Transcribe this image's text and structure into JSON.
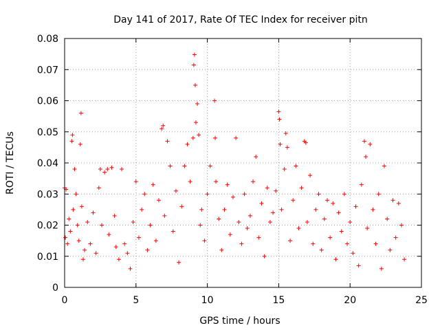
{
  "chart_data": {
    "type": "scatter",
    "title": "Day 141 of 2017, Rate Of TEC Index for receiver pitn",
    "xlabel": "GPS time / hours",
    "ylabel": "ROTI / TECUs",
    "xlim": [
      0,
      25
    ],
    "ylim": [
      0,
      0.08
    ],
    "xticks": [
      0,
      5,
      10,
      15,
      20,
      25
    ],
    "xtick_labels": [
      "0",
      "5",
      "10",
      "15",
      "20",
      "25"
    ],
    "yticks": [
      0,
      0.01,
      0.02,
      0.03,
      0.04,
      0.05,
      0.06,
      0.07,
      0.08
    ],
    "ytick_labels": [
      "0",
      "0.01",
      "0.02",
      "0.03",
      "0.04",
      "0.05",
      "0.06",
      "0.07",
      "0.08"
    ],
    "grid": true,
    "marker": "plus",
    "color": "#ff0000",
    "series": [
      {
        "name": "ROTI",
        "points": [
          [
            0.0,
            0.032
          ],
          [
            0.05,
            0.016
          ],
          [
            0.1,
            0.0315
          ],
          [
            0.2,
            0.014
          ],
          [
            0.3,
            0.022
          ],
          [
            0.4,
            0.018
          ],
          [
            0.5,
            0.047
          ],
          [
            0.55,
            0.049
          ],
          [
            0.6,
            0.025
          ],
          [
            0.7,
            0.038
          ],
          [
            0.8,
            0.03
          ],
          [
            0.9,
            0.02
          ],
          [
            1.0,
            0.015
          ],
          [
            1.1,
            0.046
          ],
          [
            1.15,
            0.056
          ],
          [
            1.2,
            0.026
          ],
          [
            1.3,
            0.009
          ],
          [
            1.4,
            0.012
          ],
          [
            1.6,
            0.021
          ],
          [
            1.8,
            0.014
          ],
          [
            2.0,
            0.024
          ],
          [
            2.2,
            0.011
          ],
          [
            2.4,
            0.032
          ],
          [
            2.5,
            0.038
          ],
          [
            2.6,
            0.02
          ],
          [
            2.8,
            0.037
          ],
          [
            3.0,
            0.038
          ],
          [
            3.1,
            0.017
          ],
          [
            3.3,
            0.0385
          ],
          [
            3.5,
            0.023
          ],
          [
            3.6,
            0.013
          ],
          [
            3.8,
            0.009
          ],
          [
            4.0,
            0.038
          ],
          [
            4.2,
            0.014
          ],
          [
            4.4,
            0.011
          ],
          [
            4.6,
            0.006
          ],
          [
            4.8,
            0.021
          ],
          [
            5.0,
            0.034
          ],
          [
            5.2,
            0.016
          ],
          [
            5.4,
            0.025
          ],
          [
            5.6,
            0.03
          ],
          [
            5.8,
            0.012
          ],
          [
            6.0,
            0.02
          ],
          [
            6.2,
            0.033
          ],
          [
            6.4,
            0.015
          ],
          [
            6.6,
            0.028
          ],
          [
            6.8,
            0.051
          ],
          [
            6.9,
            0.052
          ],
          [
            7.0,
            0.023
          ],
          [
            7.2,
            0.047
          ],
          [
            7.4,
            0.039
          ],
          [
            7.6,
            0.018
          ],
          [
            7.8,
            0.031
          ],
          [
            8.0,
            0.008
          ],
          [
            8.2,
            0.026
          ],
          [
            8.4,
            0.039
          ],
          [
            8.6,
            0.046
          ],
          [
            8.8,
            0.034
          ],
          [
            9.0,
            0.048
          ],
          [
            9.05,
            0.0715
          ],
          [
            9.1,
            0.0748
          ],
          [
            9.15,
            0.065
          ],
          [
            9.2,
            0.053
          ],
          [
            9.3,
            0.059
          ],
          [
            9.4,
            0.049
          ],
          [
            9.5,
            0.02
          ],
          [
            9.6,
            0.025
          ],
          [
            9.8,
            0.015
          ],
          [
            10.0,
            0.03
          ],
          [
            10.2,
            0.039
          ],
          [
            10.5,
            0.06
          ],
          [
            10.55,
            0.048
          ],
          [
            10.6,
            0.034
          ],
          [
            10.8,
            0.022
          ],
          [
            11.0,
            0.012
          ],
          [
            11.2,
            0.025
          ],
          [
            11.4,
            0.033
          ],
          [
            11.6,
            0.017
          ],
          [
            11.8,
            0.029
          ],
          [
            12.0,
            0.048
          ],
          [
            12.2,
            0.021
          ],
          [
            12.4,
            0.014
          ],
          [
            12.6,
            0.03
          ],
          [
            12.8,
            0.019
          ],
          [
            13.0,
            0.023
          ],
          [
            13.2,
            0.034
          ],
          [
            13.4,
            0.042
          ],
          [
            13.6,
            0.016
          ],
          [
            13.8,
            0.027
          ],
          [
            14.0,
            0.01
          ],
          [
            14.2,
            0.032
          ],
          [
            14.4,
            0.021
          ],
          [
            14.6,
            0.024
          ],
          [
            14.8,
            0.031
          ],
          [
            15.0,
            0.0565
          ],
          [
            15.05,
            0.054
          ],
          [
            15.1,
            0.046
          ],
          [
            15.2,
            0.025
          ],
          [
            15.4,
            0.038
          ],
          [
            15.5,
            0.0495
          ],
          [
            15.6,
            0.045
          ],
          [
            15.8,
            0.015
          ],
          [
            16.0,
            0.028
          ],
          [
            16.2,
            0.039
          ],
          [
            16.4,
            0.019
          ],
          [
            16.6,
            0.032
          ],
          [
            16.8,
            0.047
          ],
          [
            16.9,
            0.0465
          ],
          [
            17.0,
            0.021
          ],
          [
            17.2,
            0.036
          ],
          [
            17.4,
            0.014
          ],
          [
            17.6,
            0.025
          ],
          [
            17.8,
            0.03
          ],
          [
            18.0,
            0.012
          ],
          [
            18.2,
            0.022
          ],
          [
            18.4,
            0.028
          ],
          [
            18.6,
            0.016
          ],
          [
            18.8,
            0.027
          ],
          [
            19.0,
            0.009
          ],
          [
            19.2,
            0.024
          ],
          [
            19.4,
            0.018
          ],
          [
            19.6,
            0.03
          ],
          [
            19.8,
            0.014
          ],
          [
            20.0,
            0.021
          ],
          [
            20.2,
            0.011
          ],
          [
            20.4,
            0.026
          ],
          [
            20.6,
            0.007
          ],
          [
            20.8,
            0.033
          ],
          [
            21.0,
            0.047
          ],
          [
            21.1,
            0.042
          ],
          [
            21.2,
            0.019
          ],
          [
            21.4,
            0.046
          ],
          [
            21.6,
            0.025
          ],
          [
            21.8,
            0.014
          ],
          [
            22.0,
            0.03
          ],
          [
            22.2,
            0.006
          ],
          [
            22.4,
            0.039
          ],
          [
            22.6,
            0.022
          ],
          [
            22.8,
            0.012
          ],
          [
            23.0,
            0.028
          ],
          [
            23.2,
            0.016
          ],
          [
            23.4,
            0.027
          ],
          [
            23.6,
            0.02
          ],
          [
            23.8,
            0.009
          ]
        ]
      }
    ]
  }
}
